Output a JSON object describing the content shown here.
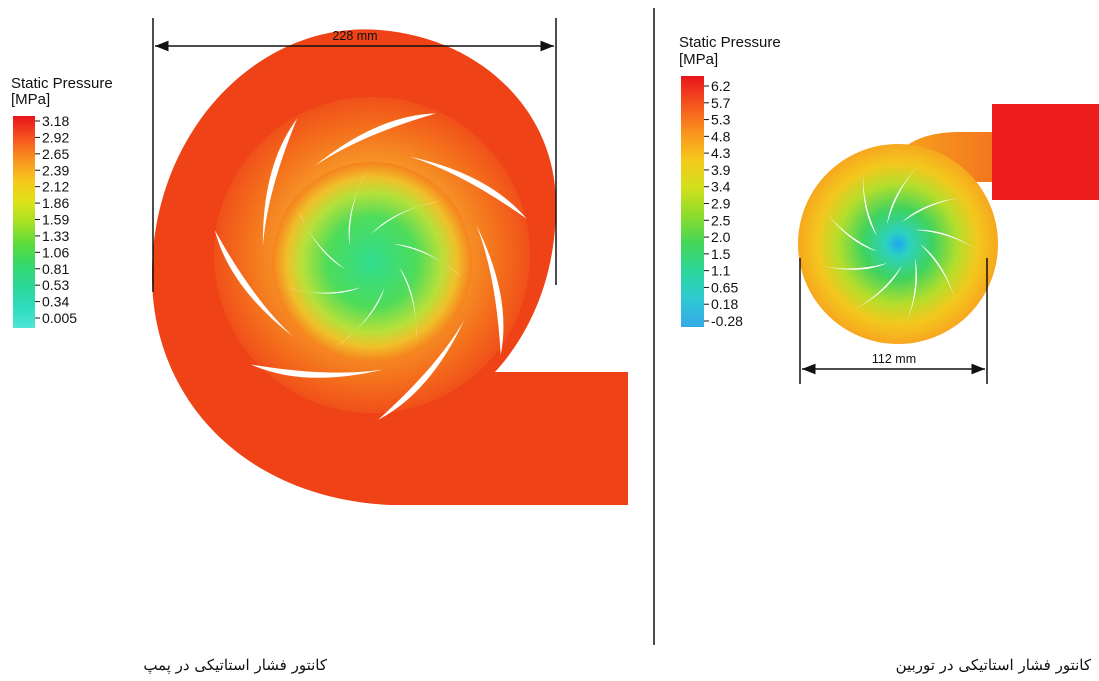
{
  "left_panel": {
    "legend": {
      "title_line1": "Static Pressure",
      "title_line2": "[MPa]",
      "ticks": [
        "3.18",
        "2.92",
        "2.65",
        "2.39",
        "2.12",
        "1.86",
        "1.59",
        "1.33",
        "1.06",
        "0.81",
        "0.53",
        "0.34",
        "0.005"
      ],
      "colors": [
        "#e8141c",
        "#f6501e",
        "#f9901e",
        "#f7c51c",
        "#dfe21a",
        "#a8e123",
        "#5fdc3a",
        "#34d86a",
        "#2ad795",
        "#2fdcbc",
        "#4ee5d6"
      ]
    },
    "dimension": "228 mm",
    "blade_count": 7,
    "colors": {
      "volute": "#ef4317",
      "ring": "#f4701c",
      "hub": "#3ddc78",
      "hub_mid": "#a8e23a"
    },
    "caption": "کانتور فشار استاتیکی در پمپ"
  },
  "right_panel": {
    "legend": {
      "title_line1": "Static Pressure",
      "title_line2": "[MPa]",
      "ticks": [
        "6.2",
        "5.7",
        "5.3",
        "4.8",
        "4.3",
        "3.9",
        "3.4",
        "2.9",
        "2.5",
        "2.0",
        "1.5",
        "1.1",
        "0.65",
        "0.18",
        "-0.28"
      ],
      "colors": [
        "#e8141c",
        "#f5531e",
        "#f9921e",
        "#f5c81c",
        "#d3e01c",
        "#8cdc2c",
        "#43d658",
        "#2ad69a",
        "#2ec9d4",
        "#35a9e8"
      ]
    },
    "dimension": "112 mm",
    "blade_count": 9,
    "colors": {
      "casing": "#f7b21e",
      "outlet": "#ed1d1d",
      "hub": "#27a9ea",
      "green": "#45d05a"
    },
    "caption": "کانتور فشار استاتیکی در توربین"
  }
}
